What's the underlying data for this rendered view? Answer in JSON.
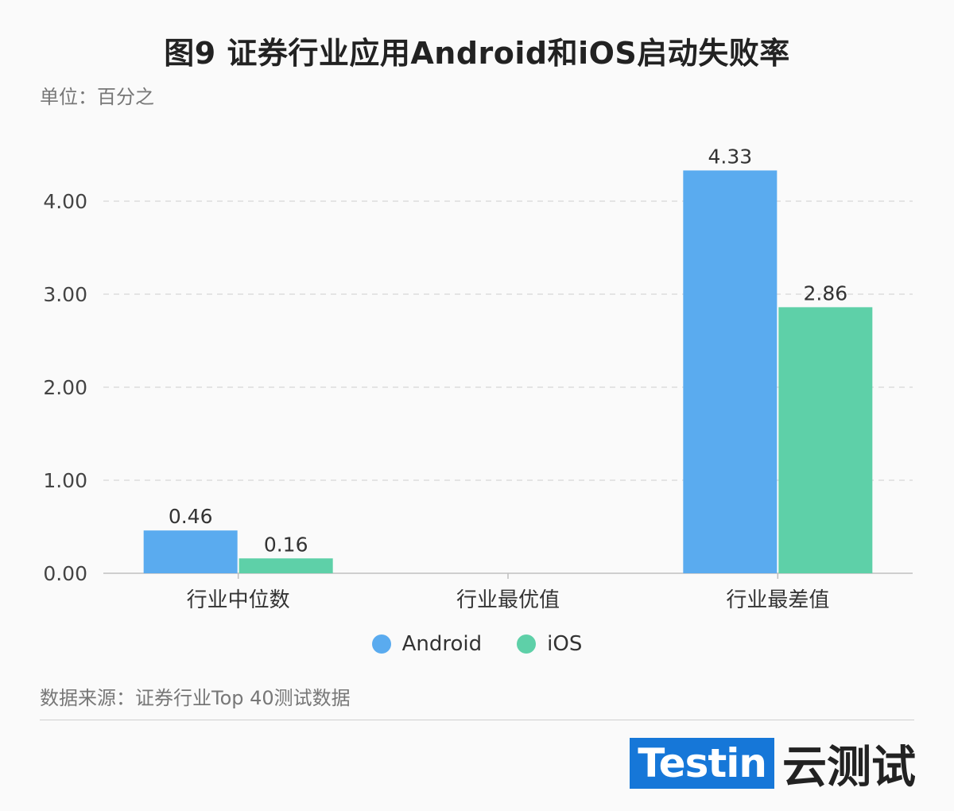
{
  "title": "图9 证券行业应用Android和iOS启动失败率",
  "unit": "单位：百分之",
  "source": "数据来源：证券行业Top 40测试数据",
  "brand": {
    "logo": "Testin",
    "text": "云测试"
  },
  "colors": {
    "android": "#5aabef",
    "ios": "#5ed0a8",
    "grid": "#d6d6d6",
    "axis": "#bfbfbf"
  },
  "legend": [
    {
      "label": "Android",
      "color": "#5aabef"
    },
    {
      "label": "iOS",
      "color": "#5ed0a8"
    }
  ],
  "chart_data": {
    "type": "bar",
    "categories": [
      "行业中位数",
      "行业最优值",
      "行业最差值"
    ],
    "series": [
      {
        "name": "Android",
        "values": [
          0.46,
          0,
          4.33
        ],
        "labels": [
          "0.46",
          "",
          "4.33"
        ]
      },
      {
        "name": "iOS",
        "values": [
          0.16,
          0,
          2.86
        ],
        "labels": [
          "0.16",
          "",
          "2.86"
        ]
      }
    ],
    "yticks": [
      "0.00",
      "1.00",
      "2.00",
      "3.00",
      "4.00"
    ],
    "ylim": [
      0,
      4.6
    ],
    "grid": true,
    "legend_position": "bottom"
  }
}
